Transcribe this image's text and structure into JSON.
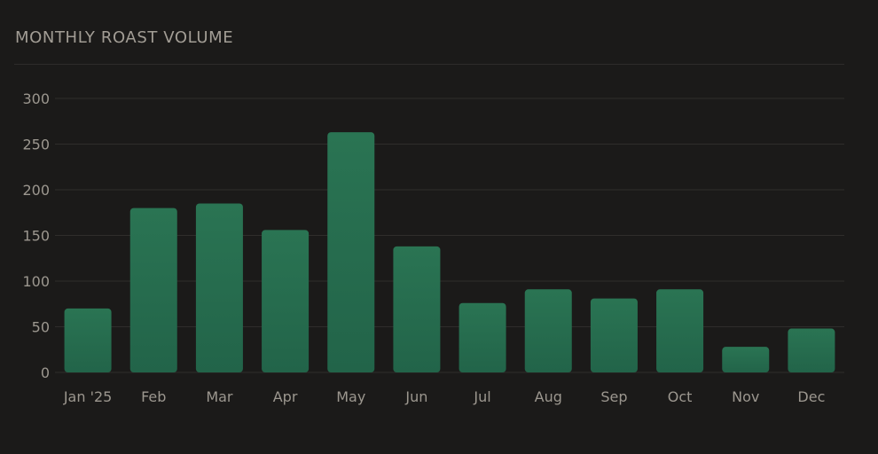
{
  "chart_data": {
    "type": "bar",
    "title": "MONTHLY ROAST VOLUME",
    "xlabel": "",
    "ylabel": "",
    "categories": [
      "Jan '25",
      "Feb",
      "Mar",
      "Apr",
      "May",
      "Jun",
      "Jul",
      "Aug",
      "Sep",
      "Oct",
      "Nov",
      "Dec"
    ],
    "values": [
      70,
      180,
      185,
      156,
      263,
      138,
      76,
      91,
      81,
      91,
      28,
      48
    ],
    "ylim": [
      0,
      300
    ],
    "yticks": [
      0,
      50,
      100,
      150,
      200,
      250,
      300
    ],
    "grid": true,
    "legend": "none"
  },
  "colors": {
    "background": "#1b1a19",
    "bar": "#226449",
    "bar_top": "#2a7453",
    "gridline": "#2f2d2b",
    "text": "#a29d95"
  }
}
